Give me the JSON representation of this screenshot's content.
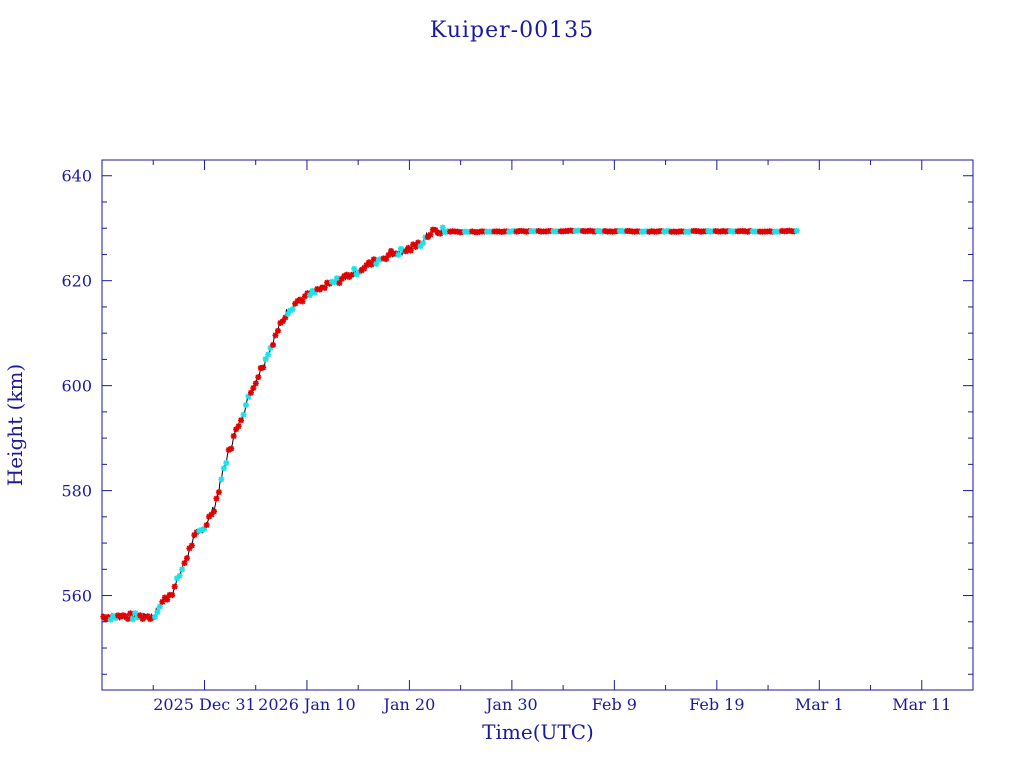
{
  "colors": {
    "axis": "#1a1a9a",
    "line": "#000000",
    "marker_primary": "#e00000",
    "marker_secondary": "#20e0e8"
  },
  "chart_data": {
    "type": "scatter",
    "title": "Kuiper-00135",
    "xlabel": "Time(UTC)",
    "ylabel": "Height (km)",
    "x_tick_labels": [
      "2025 Dec 31",
      "2026 Jan 10",
      "Jan 20",
      "Jan 30",
      "Feb  9",
      "Feb 19",
      "Mar  1",
      "Mar 11"
    ],
    "y_tick_labels": [
      "560",
      "580",
      "600",
      "620",
      "640"
    ],
    "y_ticks": [
      560,
      580,
      600,
      620,
      640
    ],
    "ylim": [
      542,
      643
    ],
    "xlim": [
      "2025-12-21",
      "2026-03-16"
    ],
    "x_ticks": [
      "2025-12-31",
      "2026-01-10",
      "2026-01-20",
      "2026-01-30",
      "2026-02-09",
      "2026-02-19",
      "2026-03-01",
      "2026-03-11"
    ],
    "grid": false,
    "markers": "star",
    "series": [
      {
        "x": [
          "2025-12-26",
          "2025-12-27",
          "2025-12-28",
          "2025-12-29",
          "2025-12-30",
          "2025-12-31",
          "2026-01-01",
          "2026-01-02",
          "2026-01-03",
          "2026-01-04",
          "2026-01-05",
          "2026-01-06",
          "2026-01-07",
          "2026-01-08",
          "2026-01-09",
          "2026-01-10",
          "2026-01-11",
          "2026-01-12",
          "2026-01-13",
          "2026-01-14",
          "2026-01-15",
          "2026-01-16",
          "2026-01-17",
          "2026-01-18",
          "2026-01-19",
          "2026-01-20",
          "2026-01-21",
          "2026-01-22",
          "2026-01-23",
          "2026-01-24",
          "2026-01-25",
          "2026-01-30",
          "2026-02-05",
          "2026-02-10",
          "2026-02-15",
          "2026-02-20",
          "2026-02-25",
          "2026-02-27"
        ],
        "y": [
          556,
          559,
          561,
          566,
          571,
          573,
          577,
          585,
          591,
          596,
          601,
          605,
          610,
          614,
          616,
          617,
          618,
          619,
          620,
          621,
          622,
          623,
          624,
          625,
          625.5,
          626,
          627,
          629,
          629.5,
          629.4,
          629.3,
          629.4,
          629.5,
          629.4,
          629.4,
          629.4,
          629.4,
          629.5
        ]
      }
    ]
  }
}
